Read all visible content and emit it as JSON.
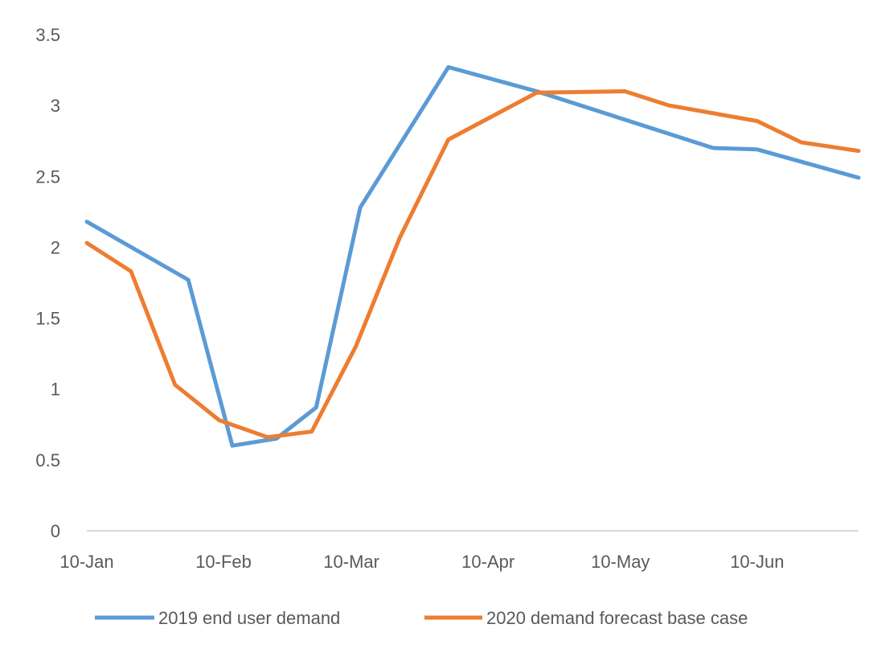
{
  "chart_data": {
    "type": "line",
    "title": "",
    "xlabel": "",
    "ylabel": "",
    "ylim": [
      0,
      3.5
    ],
    "y_ticks": [
      "0",
      "0.5",
      "1",
      "1.5",
      "2",
      "2.5",
      "3",
      "3.5"
    ],
    "x_ticks": [
      "10-Jan",
      "10-Feb",
      "10-Mar",
      "10-Apr",
      "10-May",
      "10-Jun"
    ],
    "x_tick_dates": [
      "2020-01-10",
      "2020-02-10",
      "2020-03-10",
      "2020-04-10",
      "2020-05-10",
      "2020-06-10"
    ],
    "xlim": [
      "2020-01-10",
      "2020-07-03"
    ],
    "grid": false,
    "legend_position": "bottom",
    "series": [
      {
        "name": "2019 end user demand",
        "color": "#5B9BD5",
        "points": [
          {
            "x": "2020-01-10",
            "y": 2.18
          },
          {
            "x": "2020-02-02",
            "y": 1.77
          },
          {
            "x": "2020-02-12",
            "y": 0.6
          },
          {
            "x": "2020-02-22",
            "y": 0.65
          },
          {
            "x": "2020-03-02",
            "y": 0.87
          },
          {
            "x": "2020-03-12",
            "y": 2.28
          },
          {
            "x": "2020-04-01",
            "y": 3.27
          },
          {
            "x": "2020-04-21",
            "y": 3.1
          },
          {
            "x": "2020-05-31",
            "y": 2.7
          },
          {
            "x": "2020-06-10",
            "y": 2.69
          },
          {
            "x": "2020-07-03",
            "y": 2.49
          }
        ]
      },
      {
        "name": "2020 demand forecast base case",
        "color": "#ED7D31",
        "points": [
          {
            "x": "2020-01-10",
            "y": 2.03
          },
          {
            "x": "2020-01-20",
            "y": 1.83
          },
          {
            "x": "2020-01-30",
            "y": 1.03
          },
          {
            "x": "2020-02-09",
            "y": 0.78
          },
          {
            "x": "2020-02-20",
            "y": 0.66
          },
          {
            "x": "2020-03-01",
            "y": 0.7
          },
          {
            "x": "2020-03-11",
            "y": 1.3
          },
          {
            "x": "2020-03-21",
            "y": 2.07
          },
          {
            "x": "2020-04-01",
            "y": 2.76
          },
          {
            "x": "2020-04-21",
            "y": 3.09
          },
          {
            "x": "2020-05-11",
            "y": 3.1
          },
          {
            "x": "2020-05-21",
            "y": 3.0
          },
          {
            "x": "2020-06-10",
            "y": 2.89
          },
          {
            "x": "2020-06-20",
            "y": 2.74
          },
          {
            "x": "2020-07-03",
            "y": 2.68
          }
        ]
      }
    ]
  }
}
